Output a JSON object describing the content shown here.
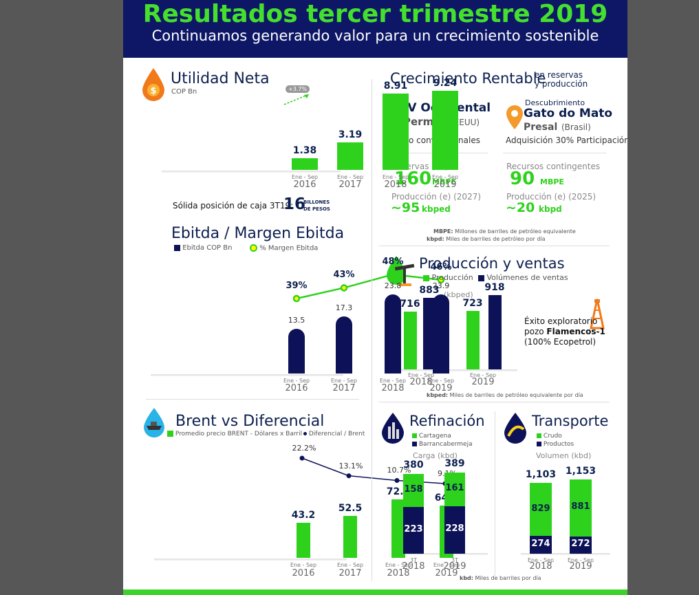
{
  "header": {
    "title": "Resultados tercer trimestre 2019",
    "subtitle": "Continuamos generando valor para un crecimiento sostenible"
  },
  "utilidad": {
    "title": "Utilidad Neta",
    "unit": "COP Bn",
    "growth_badge": "+3.7%",
    "caja_text": "Sólida posición de caja 3T19:",
    "caja_value": "16",
    "caja_unit1": "BILLONES",
    "caja_unit2": "DE PESOS"
  },
  "ebitda": {
    "title": "Ebitda / Margen Ebitda",
    "legend_bar": "Ebitda COP Bn",
    "legend_line": "% Margen Ebitda"
  },
  "brent": {
    "title": "Brent vs Diferencial",
    "legend_bar": "Promedio precio BRENT - Dólares x Barril",
    "legend_line": "Diferencial / Brent"
  },
  "crecimiento": {
    "title": "Crecimiento Rentable",
    "title_small1": "en reservas",
    "title_small2": "y producción",
    "left": {
      "name": "JV Occidental",
      "place": "Permian",
      "country": "(EEUU)",
      "type": "No convencionales",
      "res_label": "Reservas (P1)",
      "res_value": "160",
      "res_unit": "MBPE",
      "prod_label": "Producción (e) (2027)",
      "prod_value": "~95",
      "prod_unit": "kbped"
    },
    "right": {
      "pre": "Descubrimiento",
      "name": "Gato do Mato",
      "place": "Presal",
      "country": "(Brasil)",
      "type": "Adquisición 30% Participación",
      "res_label": "Recursos contingentes",
      "res_value": "90",
      "res_unit": "MBPE",
      "prod_label": "Producción (e) (2025)",
      "prod_value": "~20",
      "prod_unit": "kbpd"
    },
    "note1_b": "MBPE:",
    "note1": " Millones de barriles de petróleo equivalente",
    "note2_b": "kbpd:",
    "note2": " Miles de barriles de petróleo por día"
  },
  "produccion": {
    "title": "Producción y ventas",
    "legend_g": "Producción",
    "legend_n": "Volúmenes de ventas",
    "unit": "(kbped)",
    "exito1": "Éxito exploratorio",
    "exito2a": "pozo ",
    "exito2b": "Flamencos-1",
    "exito3": "(100% Ecopetrol)",
    "note_b": "kbped:",
    "note": " Miles de barriles de petróleo equivalente por día"
  },
  "refinacion": {
    "title": "Refinación",
    "legend_g": "Cartagena",
    "legend_n": "Barrancabermeja",
    "unit": "Carga (kbd)"
  },
  "transporte": {
    "title": "Transporte",
    "legend_g": "Crudo",
    "legend_n": "Productos",
    "unit": "Volumen (kbd)"
  },
  "bottom_note_b": "kbd:",
  "bottom_note": " Miles de barriles por día",
  "colors": {
    "green": "#2ed21c",
    "navy": "#0d1258",
    "header_bg": "#0d1765",
    "title_green": "#45e02e"
  },
  "icons": [
    "drop-dollar-icon",
    "location-pin-icon",
    "oil-pump-drop-icon",
    "drilling-rig-icon",
    "ship-drop-icon",
    "refinery-drop-icon",
    "pipeline-drop-icon"
  ],
  "chart_data": [
    {
      "type": "bar",
      "id": "utilidad",
      "categories": [
        "Ene - Sep",
        "Ene - Sep",
        "Ene - Sep",
        "Ene - Sep"
      ],
      "years": [
        "2016",
        "2017",
        "2018",
        "2019"
      ],
      "values": [
        1.38,
        3.19,
        8.91,
        9.24
      ],
      "labels": [
        "1.38",
        "3.19",
        "8.91",
        "9.24"
      ],
      "title": "Utilidad Neta",
      "ylabel": "COP Bn"
    },
    {
      "type": "bar",
      "id": "ebitda",
      "categories": [
        "Ene - Sep",
        "Ene - Sep",
        "Ene - Sep",
        "Ene - Sep"
      ],
      "years": [
        "2016",
        "2017",
        "2018",
        "2019"
      ],
      "series": [
        {
          "name": "Ebitda COP Bn",
          "values": [
            13.5,
            17.3,
            23.8,
            23.9
          ],
          "labels": [
            "13.5",
            "17.3",
            "23.8",
            "23.9"
          ]
        },
        {
          "name": "% Margen Ebitda",
          "values": [
            39,
            43,
            48,
            46
          ],
          "labels": [
            "39%",
            "43%",
            "48%",
            "46%"
          ]
        }
      ],
      "title": "Ebitda / Margen Ebitda"
    },
    {
      "type": "bar",
      "id": "brent",
      "categories": [
        "Ene - Sep",
        "Ene - Sep",
        "Ene - Sep",
        "Ene - Sep"
      ],
      "years": [
        "2016",
        "2017",
        "2018",
        "2019"
      ],
      "series": [
        {
          "name": "Promedio precio BRENT - Dólares x Barril",
          "values": [
            43.2,
            52.5,
            72.7,
            64.8
          ],
          "labels": [
            "43.2",
            "52.5",
            "72.7",
            "64.8"
          ]
        },
        {
          "name": "Diferencial / Brent",
          "values": [
            22.2,
            13.1,
            10.7,
            9.1
          ],
          "labels": [
            "22.2%",
            "13.1%",
            "10.7%",
            "9.1%"
          ]
        }
      ],
      "title": "Brent vs Diferencial"
    },
    {
      "type": "bar",
      "id": "produccion",
      "categories": [
        "Ene - Sep",
        "Ene - Sep"
      ],
      "years": [
        "2018",
        "2019"
      ],
      "series": [
        {
          "name": "Producción",
          "values": [
            716,
            723
          ],
          "labels": [
            "716",
            "723"
          ]
        },
        {
          "name": "Volúmenes de ventas",
          "values": [
            883,
            918
          ],
          "labels": [
            "883",
            "918"
          ]
        }
      ],
      "title": "Producción y ventas",
      "ylabel": "(kbped)"
    },
    {
      "type": "bar",
      "id": "refinacion",
      "stacked": true,
      "categories": [
        "3T",
        "3T"
      ],
      "years": [
        "2018",
        "2019"
      ],
      "totals": [
        "380",
        "389"
      ],
      "series": [
        {
          "name": "Cartagena",
          "values": [
            158,
            161
          ],
          "labels": [
            "158",
            "161"
          ]
        },
        {
          "name": "Barrancabermeja",
          "values": [
            223,
            228
          ],
          "labels": [
            "223",
            "228"
          ]
        }
      ],
      "title": "Refinación",
      "ylabel": "Carga (kbd)"
    },
    {
      "type": "bar",
      "id": "transporte",
      "stacked": true,
      "categories": [
        "Ene - Sep",
        "Ene - Sep"
      ],
      "years": [
        "2018",
        "2019"
      ],
      "totals": [
        "1,103",
        "1,153"
      ],
      "series": [
        {
          "name": "Crudo",
          "values": [
            829,
            881
          ],
          "labels": [
            "829",
            "881"
          ]
        },
        {
          "name": "Productos",
          "values": [
            274,
            272
          ],
          "labels": [
            "274",
            "272"
          ]
        }
      ],
      "title": "Transporte",
      "ylabel": "Volumen (kbd)"
    }
  ]
}
